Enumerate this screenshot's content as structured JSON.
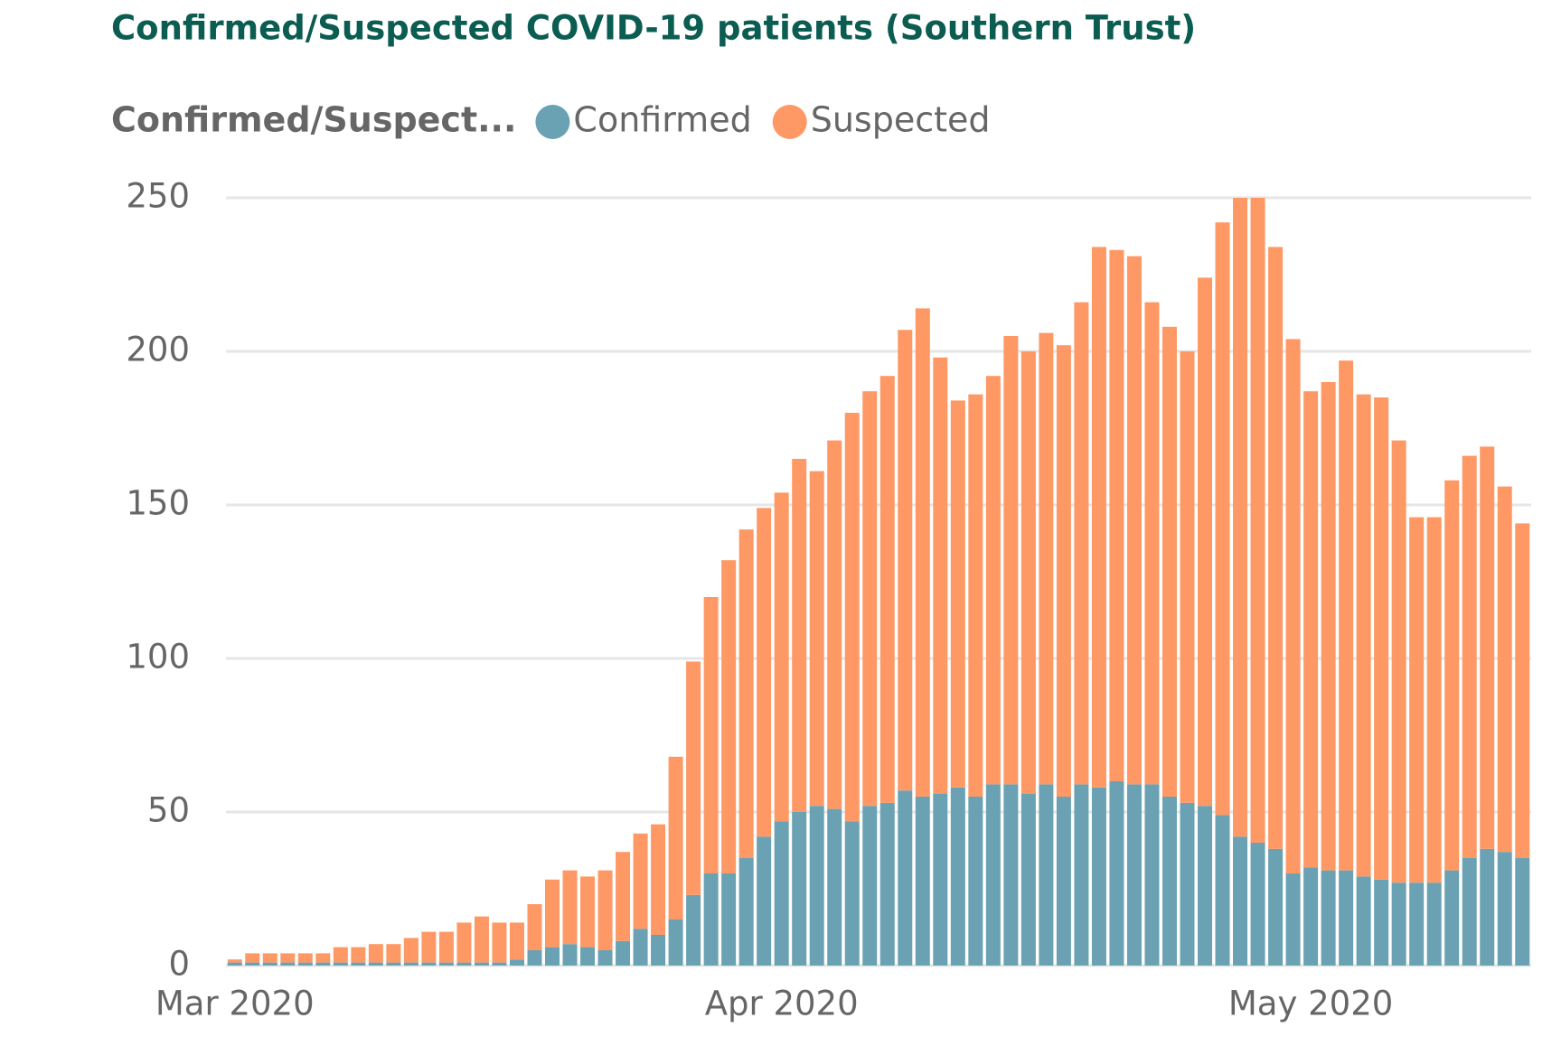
{
  "chart_data": {
    "type": "stacked_bar",
    "title": "Confirmed/Suspected COVID-19 patients (Southern Trust)",
    "legend_title": "Confirmed/Suspect...",
    "categories": [
      "Mar 2020",
      null,
      null,
      null,
      null,
      null,
      null,
      null,
      null,
      null,
      null,
      null,
      null,
      null,
      null,
      null,
      null,
      null,
      null,
      null,
      null,
      null,
      null,
      null,
      null,
      null,
      null,
      null,
      null,
      null,
      null,
      "Apr 2020",
      null,
      null,
      null,
      null,
      null,
      null,
      null,
      null,
      null,
      null,
      null,
      null,
      null,
      null,
      null,
      null,
      null,
      null,
      null,
      null,
      null,
      null,
      null,
      null,
      null,
      null,
      null,
      null,
      null,
      "May 2020",
      null,
      null,
      null,
      null,
      null,
      null,
      null,
      null,
      null,
      null,
      null,
      null
    ],
    "series": [
      {
        "name": "Confirmed",
        "color": "#6aa2b4",
        "values": [
          1,
          1,
          1,
          1,
          1,
          1,
          1,
          1,
          1,
          1,
          1,
          1,
          1,
          1,
          1,
          1,
          2,
          5,
          6,
          7,
          6,
          5,
          8,
          12,
          10,
          15,
          23,
          30,
          30,
          35,
          42,
          47,
          50,
          52,
          51,
          47,
          52,
          53,
          57,
          55,
          56,
          58,
          55,
          59,
          59,
          56,
          59,
          55,
          59,
          58,
          60,
          59,
          59,
          55,
          53,
          52,
          49,
          42,
          40,
          38,
          30,
          32,
          31,
          31,
          29,
          28,
          27,
          27,
          27,
          31,
          35,
          38,
          37,
          35
        ]
      },
      {
        "name": "Suspected",
        "color": "#fe9966",
        "values": [
          1,
          3,
          3,
          3,
          3,
          3,
          5,
          5,
          6,
          6,
          8,
          10,
          10,
          13,
          15,
          13,
          12,
          15,
          22,
          24,
          23,
          26,
          29,
          31,
          36,
          53,
          76,
          90,
          102,
          107,
          107,
          107,
          115,
          109,
          120,
          133,
          135,
          139,
          150,
          159,
          142,
          126,
          131,
          133,
          146,
          144,
          147,
          147,
          157,
          176,
          173,
          172,
          157,
          153,
          147,
          172,
          193,
          208,
          210,
          196,
          174,
          155,
          159,
          166,
          157,
          157,
          144,
          119,
          119,
          127,
          131,
          131,
          119,
          109
        ]
      }
    ],
    "ylim": [
      0,
      250
    ],
    "yticks": [
      0,
      50,
      100,
      150,
      200,
      250
    ],
    "grid": true
  }
}
